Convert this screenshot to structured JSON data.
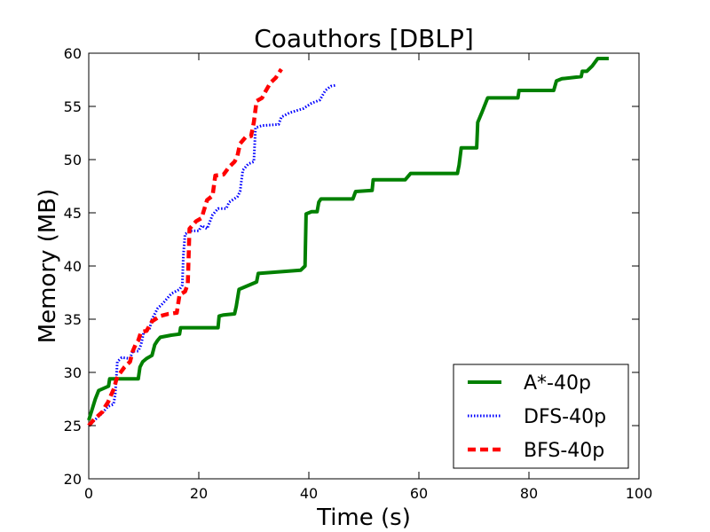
{
  "chart_data": {
    "type": "line",
    "title": "Coauthors [DBLP]",
    "xlabel": "Time (s)",
    "ylabel": "Memory (MB)",
    "xlim": [
      0,
      100
    ],
    "ylim": [
      20,
      60
    ],
    "xticks": [
      0,
      20,
      40,
      60,
      80,
      100
    ],
    "yticks": [
      20,
      25,
      30,
      35,
      40,
      45,
      50,
      55,
      60
    ],
    "grid": false,
    "legend_position": "bottom-right",
    "series": [
      {
        "name": "A*-40p",
        "color": "#008000",
        "style": "solid",
        "points": [
          [
            0,
            25.5
          ],
          [
            1.2,
            27.5
          ],
          [
            1.8,
            28.3
          ],
          [
            3.6,
            28.7
          ],
          [
            3.8,
            29.4
          ],
          [
            9.0,
            29.4
          ],
          [
            9.3,
            30.5
          ],
          [
            9.8,
            31.0
          ],
          [
            10.5,
            31.3
          ],
          [
            11.5,
            31.6
          ],
          [
            12.0,
            32.6
          ],
          [
            12.5,
            33.0
          ],
          [
            13.0,
            33.3
          ],
          [
            15.0,
            33.5
          ],
          [
            16.5,
            33.6
          ],
          [
            16.7,
            34.2
          ],
          [
            23.5,
            34.2
          ],
          [
            23.7,
            35.3
          ],
          [
            24.5,
            35.4
          ],
          [
            26.5,
            35.5
          ],
          [
            26.8,
            36.2
          ],
          [
            27.3,
            37.8
          ],
          [
            30.5,
            38.5
          ],
          [
            30.8,
            39.3
          ],
          [
            38.5,
            39.6
          ],
          [
            39.3,
            40.0
          ],
          [
            39.5,
            44.9
          ],
          [
            40.5,
            45.1
          ],
          [
            41.5,
            45.1
          ],
          [
            41.8,
            46.0
          ],
          [
            42.2,
            46.3
          ],
          [
            48.0,
            46.3
          ],
          [
            48.5,
            47.0
          ],
          [
            51.5,
            47.1
          ],
          [
            51.7,
            48.1
          ],
          [
            57.5,
            48.1
          ],
          [
            58.5,
            48.7
          ],
          [
            67.0,
            48.7
          ],
          [
            67.3,
            49.5
          ],
          [
            67.7,
            51.1
          ],
          [
            70.5,
            51.1
          ],
          [
            70.7,
            53.5
          ],
          [
            71.5,
            54.5
          ],
          [
            72.5,
            55.8
          ],
          [
            78.0,
            55.8
          ],
          [
            78.2,
            56.5
          ],
          [
            84.5,
            56.5
          ],
          [
            85.0,
            57.4
          ],
          [
            86.0,
            57.6
          ],
          [
            89.5,
            57.8
          ],
          [
            89.7,
            58.3
          ],
          [
            90.5,
            58.3
          ],
          [
            91.5,
            58.8
          ],
          [
            92.5,
            59.5
          ],
          [
            94.5,
            59.5
          ]
        ]
      },
      {
        "name": "DFS-40p",
        "color": "#0000ff",
        "style": "dotted",
        "points": [
          [
            0,
            25.0
          ],
          [
            2.5,
            26.2
          ],
          [
            3.5,
            26.8
          ],
          [
            4.5,
            27.0
          ],
          [
            4.8,
            27.9
          ],
          [
            5.0,
            29.4
          ],
          [
            5.2,
            31.0
          ],
          [
            6.0,
            31.4
          ],
          [
            7.5,
            31.3
          ],
          [
            8.0,
            32.0
          ],
          [
            9.0,
            32.0
          ],
          [
            9.5,
            32.6
          ],
          [
            10.0,
            33.8
          ],
          [
            11.0,
            34.0
          ],
          [
            11.5,
            35.0
          ],
          [
            12.5,
            36.0
          ],
          [
            13.5,
            36.5
          ],
          [
            15.0,
            37.4
          ],
          [
            16.5,
            37.8
          ],
          [
            17.0,
            38.2
          ],
          [
            17.2,
            41.0
          ],
          [
            17.5,
            43.0
          ],
          [
            18.5,
            43.3
          ],
          [
            20.0,
            43.3
          ],
          [
            20.5,
            43.8
          ],
          [
            21.5,
            43.5
          ],
          [
            22.5,
            44.8
          ],
          [
            23.5,
            45.4
          ],
          [
            25.0,
            45.4
          ],
          [
            25.5,
            46.0
          ],
          [
            27.0,
            46.5
          ],
          [
            27.5,
            47.0
          ],
          [
            28.0,
            49.0
          ],
          [
            29.0,
            49.6
          ],
          [
            30.0,
            49.8
          ],
          [
            30.3,
            53.0
          ],
          [
            31.5,
            53.2
          ],
          [
            34.5,
            53.3
          ],
          [
            35.0,
            54.0
          ],
          [
            36.5,
            54.4
          ],
          [
            39.0,
            54.8
          ],
          [
            40.5,
            55.3
          ],
          [
            42.0,
            55.6
          ],
          [
            43.0,
            56.5
          ],
          [
            44.0,
            56.9
          ],
          [
            45.0,
            57.0
          ]
        ]
      },
      {
        "name": "BFS-40p",
        "color": "#ff0000",
        "style": "dashed",
        "points": [
          [
            0,
            25.0
          ],
          [
            1.0,
            25.6
          ],
          [
            2.5,
            26.3
          ],
          [
            3.0,
            26.8
          ],
          [
            3.5,
            27.2
          ],
          [
            4.0,
            27.8
          ],
          [
            4.6,
            28.5
          ],
          [
            5.0,
            29.3
          ],
          [
            5.5,
            29.8
          ],
          [
            6.5,
            30.5
          ],
          [
            7.5,
            31.0
          ],
          [
            8.0,
            32.0
          ],
          [
            8.5,
            32.6
          ],
          [
            9.0,
            33.0
          ],
          [
            9.5,
            33.8
          ],
          [
            10.5,
            33.9
          ],
          [
            11.5,
            34.8
          ],
          [
            13.0,
            35.3
          ],
          [
            14.5,
            35.5
          ],
          [
            16.0,
            35.6
          ],
          [
            16.5,
            37.3
          ],
          [
            17.5,
            37.6
          ],
          [
            18.0,
            38.3
          ],
          [
            18.3,
            43.5
          ],
          [
            19.5,
            44.2
          ],
          [
            20.5,
            44.5
          ],
          [
            21.5,
            46.2
          ],
          [
            22.5,
            46.6
          ],
          [
            23.0,
            48.5
          ],
          [
            24.5,
            48.6
          ],
          [
            25.5,
            49.3
          ],
          [
            26.5,
            49.8
          ],
          [
            27.0,
            50.3
          ],
          [
            27.5,
            51.5
          ],
          [
            28.5,
            52.1
          ],
          [
            29.5,
            52.2
          ],
          [
            30.0,
            53.5
          ],
          [
            30.5,
            55.5
          ],
          [
            31.5,
            55.8
          ],
          [
            32.0,
            56.3
          ],
          [
            33.0,
            57.2
          ],
          [
            34.0,
            57.7
          ],
          [
            35.0,
            58.5
          ]
        ]
      }
    ]
  }
}
